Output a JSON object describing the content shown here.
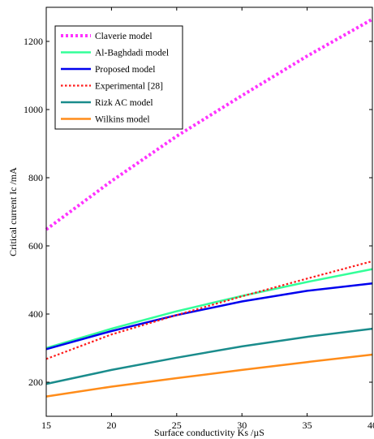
{
  "chart_data": {
    "type": "line",
    "xlabel": "Surface conductivity Ks /µS",
    "ylabel": "Critical current Ic /mA",
    "xlim": [
      15,
      40
    ],
    "ylim": [
      100,
      1300
    ],
    "xticks": [
      "15",
      "20",
      "25",
      "30",
      "35",
      "40"
    ],
    "yticks": [
      "200",
      "400",
      "600",
      "800",
      "1000",
      "1200"
    ],
    "grid": false,
    "legend_position": "top-left",
    "x": [
      15,
      20,
      25,
      30,
      35,
      40
    ],
    "series": [
      {
        "name": "Claverie model",
        "color": "#ff33ff",
        "dash": "dot-thick",
        "values": [
          648,
          790,
          922,
          1041,
          1157,
          1265
        ]
      },
      {
        "name": "Al-Baghdadi model",
        "color": "#33ff99",
        "dash": "solid",
        "values": [
          300,
          357,
          408,
          453,
          494,
          532
        ]
      },
      {
        "name": "Proposed model",
        "color": "#0000ee",
        "dash": "solid",
        "values": [
          297,
          350,
          397,
          437,
          468,
          490
        ]
      },
      {
        "name": "Experimental [28]",
        "color": "#ff1a1a",
        "dash": "dot",
        "values": [
          268,
          340,
          397,
          452,
          504,
          555
        ]
      },
      {
        "name": "Rizk AC model",
        "color": "#1a8c8c",
        "dash": "solid",
        "values": [
          195,
          236,
          272,
          305,
          333,
          357
        ]
      },
      {
        "name": "Wilkins model",
        "color": "#ff8c1a",
        "dash": "solid",
        "values": [
          158,
          187,
          212,
          236,
          259,
          281
        ]
      }
    ]
  }
}
